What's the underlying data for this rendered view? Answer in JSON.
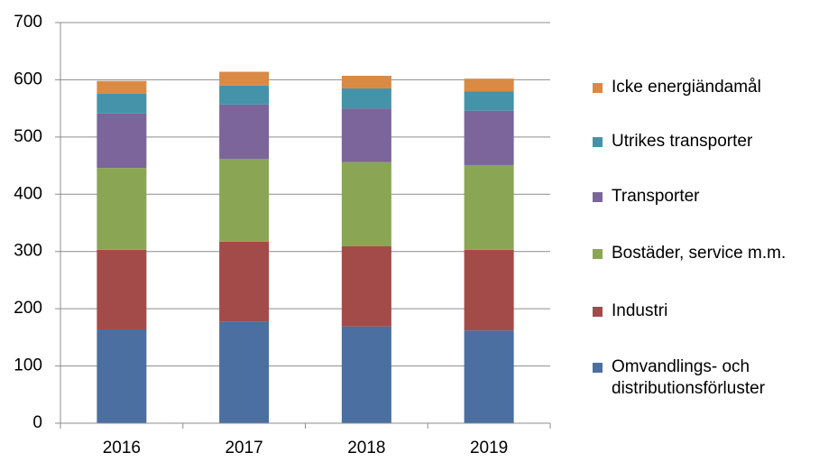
{
  "chart_data": {
    "type": "stacked-bar",
    "categories": [
      "2016",
      "2017",
      "2018",
      "2019"
    ],
    "series": [
      {
        "name": "Omvandlings- och distributionsförluster",
        "color": "#4a6fa0",
        "values": [
          164,
          177,
          169,
          162
        ]
      },
      {
        "name": "Industri",
        "color": "#a34b49",
        "values": [
          139,
          140,
          140,
          141
        ]
      },
      {
        "name": "Bostäder, service m.m.",
        "color": "#8aa654",
        "values": [
          143,
          145,
          147,
          148
        ]
      },
      {
        "name": "Transporter",
        "color": "#7b659a",
        "values": [
          95,
          95,
          94,
          95
        ]
      },
      {
        "name": "Utrikes transporter",
        "color": "#4593a8",
        "values": [
          35,
          33,
          35,
          34
        ]
      },
      {
        "name": "Icke energiändamål",
        "color": "#d98a45",
        "values": [
          22,
          24,
          22,
          22
        ]
      }
    ],
    "ylim": [
      0,
      700
    ],
    "yticks": [
      0,
      100,
      200,
      300,
      400,
      500,
      600,
      700
    ],
    "grid": true
  }
}
